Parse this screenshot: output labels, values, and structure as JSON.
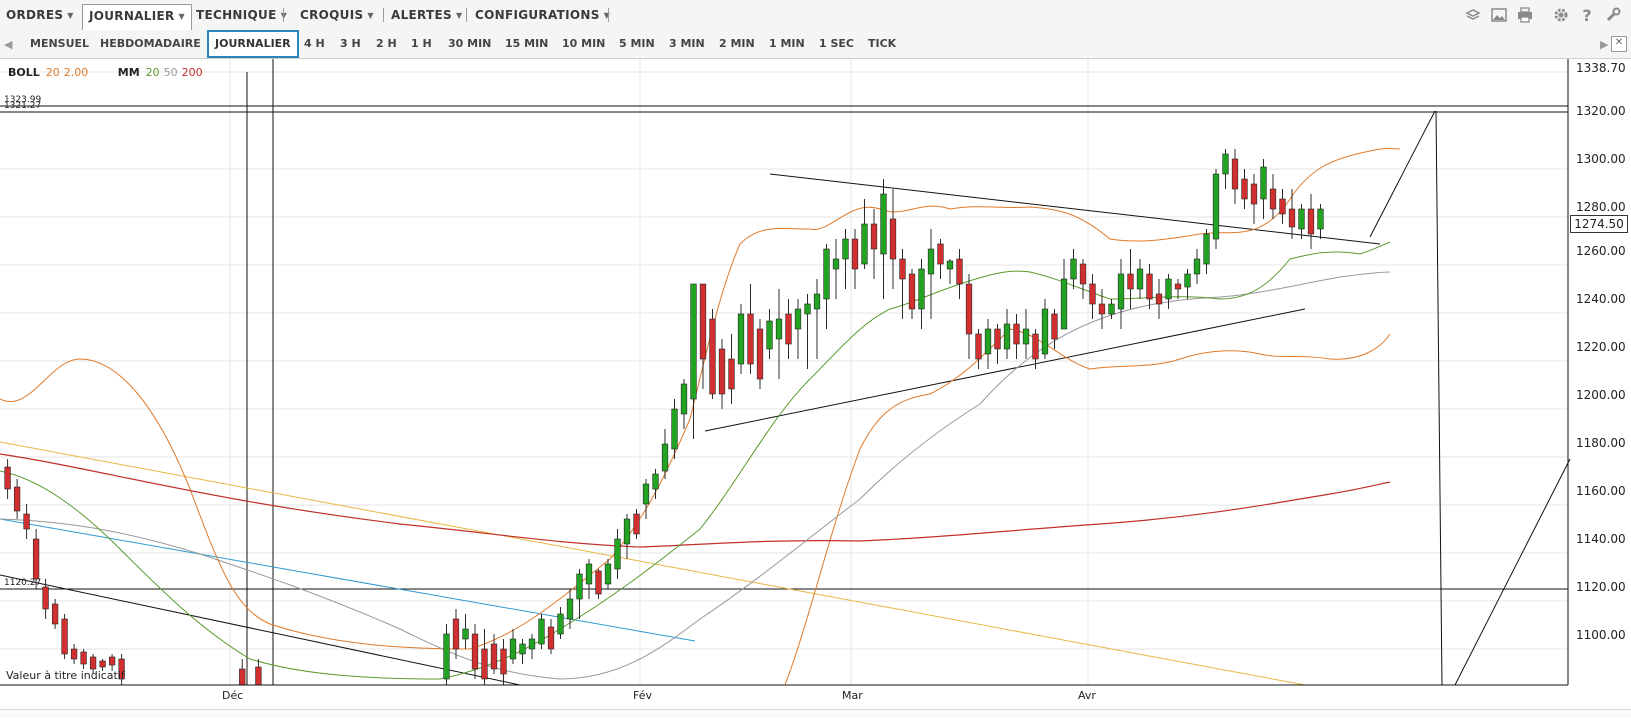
{
  "menu": {
    "items": [
      {
        "label": "ORDRES",
        "caret": "▼"
      },
      {
        "label": "JOURNALIER",
        "caret": "▼",
        "active": true
      },
      {
        "label": "TECHNIQUE",
        "caret": "▼"
      },
      {
        "label": "CROQUIS",
        "caret": "▼"
      },
      {
        "label": "ALERTES",
        "caret": "▼"
      },
      {
        "label": "CONFIGURATIONS",
        "caret": "▼"
      }
    ],
    "tool_icons": [
      "layers-icon",
      "image-icon",
      "print-icon",
      "gear-icon",
      "help-icon",
      "wrench-icon"
    ]
  },
  "intervals": {
    "items": [
      "MENSUEL",
      "HEBDOMADAIRE",
      "JOURNALIER",
      "4 H",
      "3 H",
      "2 H",
      "1 H",
      "30 MIN",
      "15 MIN",
      "10 MIN",
      "5 MIN",
      "3 MIN",
      "2 MIN",
      "1 MIN",
      "1 SEC",
      "TICK"
    ],
    "active": "JOURNALIER"
  },
  "legend": {
    "boll_label": "BOLL",
    "boll_p1": "20",
    "boll_p2": "2.00",
    "mm_label": "MM",
    "mm_p1": "20",
    "mm_p2": "50",
    "mm_p3": "200"
  },
  "colors": {
    "boll": "#e07a2a",
    "mm20": "#5a9a2a",
    "mm50": "#999999",
    "mm200": "#c0302a",
    "up": "#22a322",
    "down": "#d23030",
    "accent": "#2a86b5"
  },
  "price_tag": "1274.50",
  "hline_labels": {
    "top1": "1323.99",
    "top2": "1321.27",
    "mid": "1120.27"
  },
  "disclaimer": "Valeur à titre indicatif",
  "chart_data": {
    "type": "candlestick",
    "y_ticks": [
      "1338.70",
      "1320.00",
      "1300.00",
      "1280.00",
      "1260.00",
      "1240.00",
      "1220.00",
      "1200.00",
      "1180.00",
      "1160.00",
      "1140.00",
      "1120.00",
      "1100.00"
    ],
    "x_labels": [
      "Déc",
      "Fév",
      "Mar",
      "Avr"
    ],
    "last_price": 1274.5,
    "horizontal_levels": [
      1323.99,
      1321.27,
      1120.27
    ]
  }
}
